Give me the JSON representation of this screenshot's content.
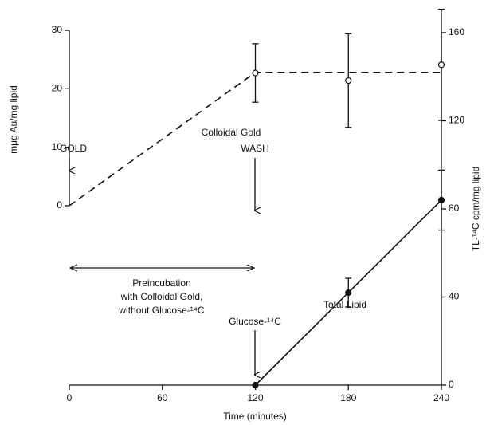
{
  "chart_data": {
    "type": "line",
    "xlabel": "Time (minutes)",
    "ylabel": "mμg Au/mg lipid",
    "y2label": "TL-¹⁴C cpm/mg lipid",
    "xlim": [
      0,
      240
    ],
    "xticks": [
      0,
      60,
      120,
      180,
      240
    ],
    "ylim": [
      0,
      30
    ],
    "yticks": [
      0,
      10,
      20,
      30
    ],
    "y2lim": [
      0,
      160
    ],
    "y2ticks": [
      0,
      40,
      80,
      120,
      160
    ],
    "color": "#111111",
    "series": [
      {
        "x": [
          0,
          120,
          240
        ],
        "values": [
          0,
          22.8,
          22.8
        ],
        "dash": true,
        "marker": "none"
      },
      {
        "name": "Colloidal Gold",
        "x": [
          120,
          180,
          240
        ],
        "values": [
          22.7,
          21.4,
          24.1
        ],
        "errors": [
          5,
          8,
          9.5
        ],
        "marker": "open",
        "line": false
      },
      {
        "name": "Total Lipid",
        "axis": "y2",
        "x": [
          120,
          180,
          240
        ],
        "values": [
          0,
          42,
          84
        ],
        "errors": [
          null,
          6.5,
          13.6
        ],
        "marker": "filled",
        "line": true
      }
    ],
    "annotations": [
      "GOLD",
      "WASH",
      "Glucose-¹⁴C",
      "Preincubation",
      "with Colloidal Gold,",
      "without Glucose-¹⁴C"
    ]
  }
}
